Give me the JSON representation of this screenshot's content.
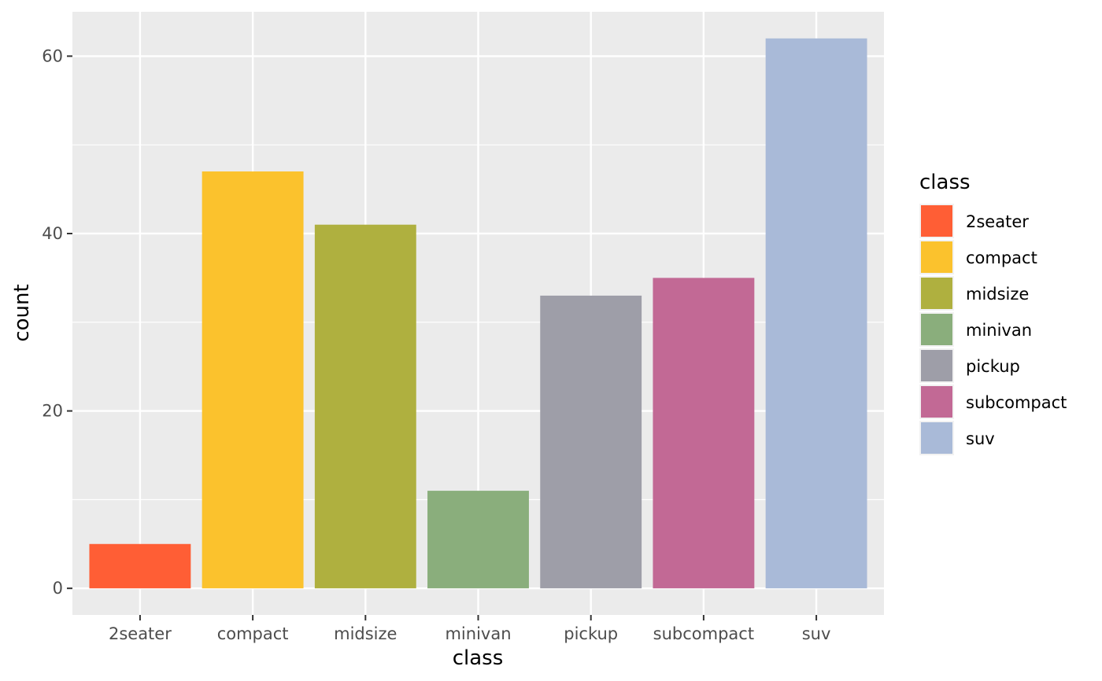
{
  "chart_data": {
    "type": "bar",
    "xlabel": "class",
    "ylabel": "count",
    "categories": [
      "2seater",
      "compact",
      "midsize",
      "minivan",
      "pickup",
      "subcompact",
      "suv"
    ],
    "values": [
      5,
      47,
      41,
      11,
      33,
      35,
      62
    ],
    "colors": [
      "#FF5E35",
      "#FBC22D",
      "#AFB03F",
      "#8AAE7C",
      "#9E9EA8",
      "#C26995",
      "#A9BAD8"
    ],
    "ylim": [
      -3,
      65
    ],
    "yticks": [
      0,
      20,
      40,
      60
    ],
    "grid": true,
    "panel_background": "#EBEBEB",
    "grid_color": "#FFFFFF",
    "legend": {
      "title": "class",
      "position": "right",
      "entries": [
        "2seater",
        "compact",
        "midsize",
        "minivan",
        "pickup",
        "subcompact",
        "suv"
      ]
    }
  }
}
